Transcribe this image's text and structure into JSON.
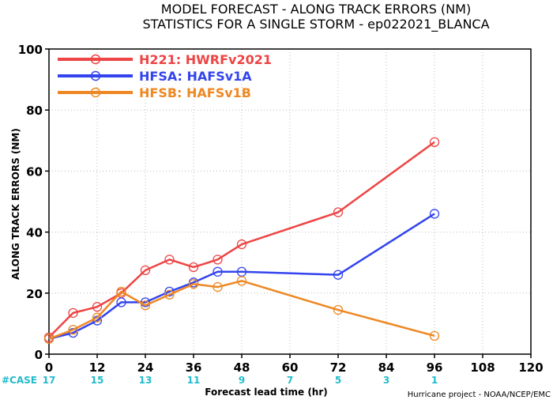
{
  "chart_data": {
    "type": "line",
    "title": "MODEL FORECAST - ALONG TRACK ERRORS (NM)",
    "subtitle": "STATISTICS FOR A SINGLE STORM - ep022021_BLANCA",
    "xlabel": "Forecast lead time (hr)",
    "ylabel": "ALONG TRACK ERRORS (NM)",
    "xlim": [
      0,
      120
    ],
    "ylim": [
      0,
      100
    ],
    "xticks": [
      0,
      12,
      24,
      36,
      48,
      60,
      72,
      84,
      96,
      108,
      120
    ],
    "yticks": [
      0,
      20,
      40,
      60,
      80,
      100
    ],
    "grid": true,
    "legend_position": "top-left",
    "series": [
      {
        "name": "H221: HWRFv2021",
        "color": "#ee4444",
        "x": [
          0,
          6,
          12,
          18,
          24,
          30,
          36,
          42,
          48,
          72,
          96
        ],
        "y": [
          5.5,
          13.5,
          15.5,
          20,
          27.5,
          31,
          28.5,
          31,
          36,
          46.5,
          69.5
        ]
      },
      {
        "name": "HFSA: HAFSv1A",
        "color": "#3344ee",
        "x": [
          0,
          6,
          12,
          18,
          24,
          30,
          36,
          42,
          48,
          72,
          96
        ],
        "y": [
          5,
          7,
          11,
          17,
          17,
          20.5,
          23.5,
          27,
          27,
          26,
          46
        ]
      },
      {
        "name": "HFSB: HAFSv1B",
        "color": "#ee8822",
        "x": [
          0,
          6,
          12,
          18,
          24,
          30,
          36,
          42,
          48,
          72,
          96
        ],
        "y": [
          5,
          8,
          12,
          20.5,
          16,
          19.5,
          23,
          22,
          24,
          14.5,
          6
        ]
      }
    ],
    "case_label": "#CASE",
    "case_counts": {
      "x": [
        0,
        12,
        24,
        36,
        48,
        60,
        72,
        84,
        96
      ],
      "values": [
        "17",
        "15",
        "13",
        "11",
        "9",
        "7",
        "5",
        "3",
        "1"
      ]
    },
    "credit": "Hurricane project - NOAA/NCEP/EMC",
    "colors": {
      "case": "#22bbcc",
      "grid": "#bbbbbb"
    }
  }
}
